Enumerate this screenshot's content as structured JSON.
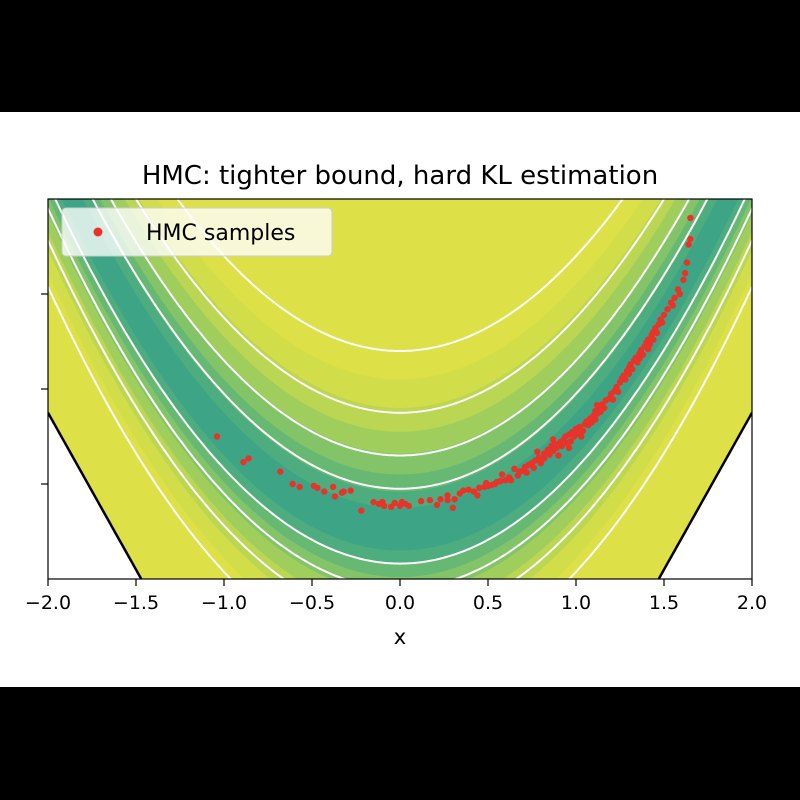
{
  "chart_data": {
    "type": "scatter",
    "title": "HMC: tighter bound, hard KL estimation",
    "xlabel": "x",
    "ylabel": "",
    "xlim": [
      -2.0,
      2.0
    ],
    "ylim": [
      -0.5,
      3.5
    ],
    "xticks": [
      "−2.0",
      "−1.5",
      "−1.0",
      "−0.5",
      "0.0",
      "0.5",
      "1.0",
      "1.5",
      "2.0"
    ],
    "xtick_values": [
      -2.0,
      -1.5,
      -1.0,
      -0.5,
      0.0,
      0.5,
      1.0,
      1.5,
      2.0
    ],
    "ytick_values": [
      0.5,
      1.5,
      2.5
    ],
    "ytick_labels_visible": false,
    "legend": {
      "placement": "top-left",
      "entries": [
        "HMC samples"
      ]
    },
    "colors": {
      "samples": "#e8332a",
      "contour_lines": "#ffffff",
      "density_low": "#dde046",
      "density_high": "#35a08a",
      "boundary": "#000000"
    },
    "background": "filled contour of banana-shaped density y ≈ x², viridis-like colormap, white contour lines",
    "series": [
      {
        "name": "HMC samples",
        "kind": "scatter",
        "points": [
          [
            -1.04,
            1.0
          ],
          [
            -0.86,
            0.77
          ],
          [
            -0.89,
            0.73
          ],
          [
            -0.68,
            0.63
          ],
          [
            -0.61,
            0.5
          ],
          [
            -0.57,
            0.47
          ],
          [
            -0.49,
            0.48
          ],
          [
            -0.47,
            0.46
          ],
          [
            -0.43,
            0.42
          ],
          [
            -0.38,
            0.47
          ],
          [
            -0.32,
            0.42
          ],
          [
            -0.33,
            0.41
          ],
          [
            -0.37,
            0.37
          ],
          [
            -0.22,
            0.22
          ],
          [
            -0.12,
            0.29
          ],
          [
            -0.1,
            0.31
          ],
          [
            -0.09,
            0.27
          ],
          [
            -0.05,
            0.26
          ],
          [
            -0.03,
            0.3
          ],
          [
            0.0,
            0.27
          ],
          [
            0.01,
            0.31
          ],
          [
            0.03,
            0.29
          ],
          [
            0.05,
            0.27
          ],
          [
            0.17,
            0.33
          ],
          [
            0.21,
            0.28
          ],
          [
            0.23,
            0.34
          ],
          [
            0.27,
            0.33
          ],
          [
            0.27,
            0.38
          ],
          [
            0.3,
            0.25
          ],
          [
            0.34,
            0.4
          ],
          [
            0.36,
            0.43
          ],
          [
            0.39,
            0.44
          ],
          [
            0.42,
            0.42
          ],
          [
            0.45,
            0.46
          ],
          [
            0.48,
            0.47
          ],
          [
            0.5,
            0.48
          ],
          [
            0.49,
            0.51
          ],
          [
            0.52,
            0.49
          ],
          [
            0.54,
            0.5
          ],
          [
            0.55,
            0.52
          ],
          [
            0.57,
            0.53
          ],
          [
            0.6,
            0.54
          ],
          [
            0.62,
            0.57
          ],
          [
            0.63,
            0.54
          ],
          [
            0.67,
            0.59
          ],
          [
            0.68,
            0.63
          ],
          [
            0.7,
            0.64
          ],
          [
            0.71,
            0.68
          ],
          [
            0.73,
            0.7
          ],
          [
            0.75,
            0.72
          ],
          [
            0.76,
            0.67
          ],
          [
            0.77,
            0.75
          ],
          [
            0.79,
            0.78
          ],
          [
            0.8,
            0.72
          ],
          [
            0.82,
            0.77
          ],
          [
            0.82,
            0.82
          ],
          [
            0.84,
            0.86
          ],
          [
            0.85,
            0.81
          ],
          [
            0.86,
            0.9
          ],
          [
            0.87,
            0.85
          ],
          [
            0.88,
            0.92
          ],
          [
            0.89,
            0.88
          ],
          [
            0.9,
            0.8
          ],
          [
            0.91,
            0.94
          ],
          [
            0.92,
            0.9
          ],
          [
            0.93,
            0.97
          ],
          [
            0.94,
            1.0
          ],
          [
            0.95,
            0.93
          ],
          [
            0.96,
            1.02
          ],
          [
            0.97,
            0.95
          ],
          [
            0.98,
            1.05
          ],
          [
            0.99,
            1.0
          ],
          [
            1.0,
            1.08
          ],
          [
            1.01,
            1.03
          ],
          [
            1.02,
            1.1
          ],
          [
            1.04,
            1.06
          ],
          [
            1.05,
            1.13
          ],
          [
            1.06,
            1.16
          ],
          [
            1.07,
            1.12
          ],
          [
            1.08,
            1.19
          ],
          [
            1.09,
            1.15
          ],
          [
            1.1,
            1.22
          ],
          [
            1.11,
            1.18
          ],
          [
            1.11,
            1.27
          ],
          [
            1.12,
            1.24
          ],
          [
            1.13,
            1.3
          ],
          [
            1.14,
            1.26
          ],
          [
            1.15,
            1.34
          ],
          [
            1.16,
            1.3
          ],
          [
            1.17,
            1.38
          ],
          [
            1.19,
            1.4
          ],
          [
            1.2,
            1.45
          ],
          [
            1.22,
            1.48
          ],
          [
            1.23,
            1.52
          ],
          [
            1.25,
            1.57
          ],
          [
            1.26,
            1.61
          ],
          [
            1.27,
            1.64
          ],
          [
            1.28,
            1.6
          ],
          [
            1.29,
            1.69
          ],
          [
            1.3,
            1.72
          ],
          [
            1.31,
            1.76
          ],
          [
            1.32,
            1.71
          ],
          [
            1.33,
            1.8
          ],
          [
            1.34,
            1.83
          ],
          [
            1.35,
            1.78
          ],
          [
            1.36,
            1.87
          ],
          [
            1.37,
            1.91
          ],
          [
            1.38,
            1.86
          ],
          [
            1.39,
            1.95
          ],
          [
            1.4,
            1.99
          ],
          [
            1.41,
            2.02
          ],
          [
            1.42,
            1.97
          ],
          [
            1.43,
            2.07
          ],
          [
            1.44,
            2.1
          ],
          [
            1.45,
            2.14
          ],
          [
            1.46,
            2.09
          ],
          [
            1.47,
            2.18
          ],
          [
            1.48,
            2.23
          ],
          [
            1.5,
            2.28
          ],
          [
            1.52,
            2.34
          ],
          [
            1.54,
            2.41
          ],
          [
            1.56,
            2.46
          ],
          [
            1.58,
            2.55
          ],
          [
            1.61,
            2.65
          ],
          [
            1.62,
            2.72
          ],
          [
            1.63,
            2.83
          ],
          [
            1.64,
            3.02
          ],
          [
            1.65,
            3.08
          ],
          [
            1.65,
            3.3
          ],
          [
            0.58,
            0.6
          ],
          [
            0.65,
            0.66
          ],
          [
            0.72,
            0.62
          ],
          [
            0.78,
            0.84
          ],
          [
            0.87,
            0.97
          ],
          [
            0.96,
            0.88
          ],
          [
            1.03,
            1.0
          ],
          [
            1.12,
            1.33
          ],
          [
            1.21,
            1.39
          ],
          [
            1.24,
            1.47
          ],
          [
            1.3,
            1.66
          ],
          [
            1.36,
            1.82
          ],
          [
            1.41,
            1.92
          ],
          [
            1.44,
            2.02
          ],
          [
            1.49,
            2.2
          ],
          [
            1.55,
            2.38
          ],
          [
            1.59,
            2.5
          ],
          [
            0.44,
            0.38
          ],
          [
            0.31,
            0.34
          ],
          [
            0.12,
            0.32
          ],
          [
            -0.15,
            0.31
          ],
          [
            -0.28,
            0.43
          ]
        ]
      }
    ],
    "contour_levels": [
      0.45,
      0.8,
      1.25,
      1.9
    ],
    "boundary_lines": [
      {
        "side": "left",
        "from": [
          -2.0,
          1.25
        ],
        "to": [
          -1.47,
          -0.5
        ]
      },
      {
        "side": "right",
        "from": [
          1.47,
          -0.5
        ],
        "to": [
          2.0,
          1.25
        ]
      }
    ]
  }
}
